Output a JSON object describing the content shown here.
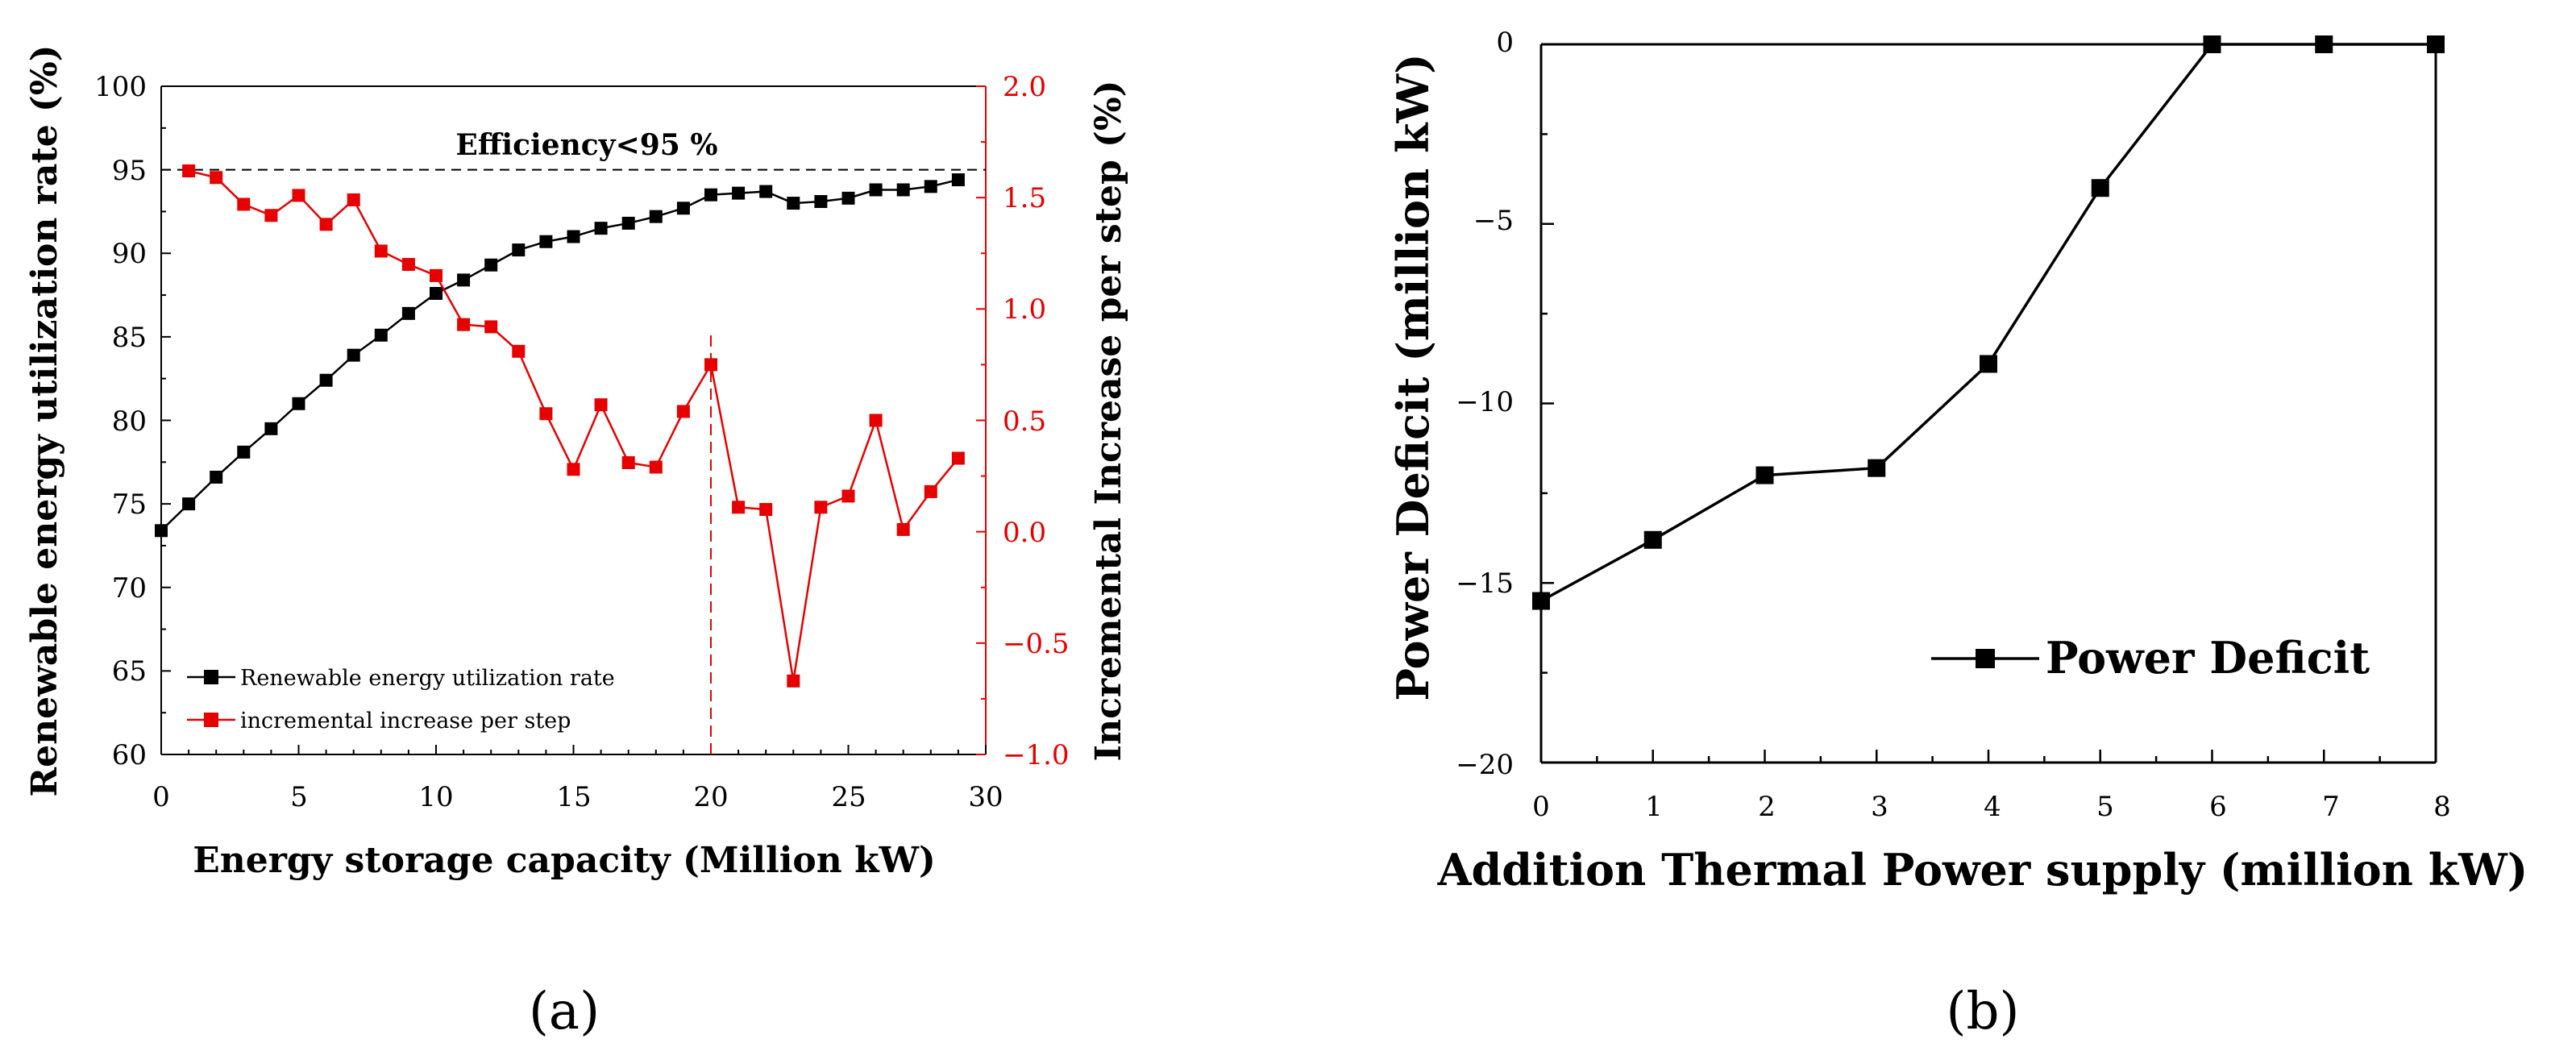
{
  "chart_data": [
    {
      "panel": "(a)",
      "type": "line",
      "xlabel": "Energy storage capacity (Million kW)",
      "ylabel": "Renewable energy utilization rate (%)",
      "y2label": "Incremental Increase per step (%)",
      "xlim": [
        0,
        30
      ],
      "ylim": [
        60,
        100
      ],
      "y2lim": [
        -1.0,
        2.0
      ],
      "xticks": [
        "0",
        "5",
        "10",
        "15",
        "20",
        "25",
        "30"
      ],
      "yticks": [
        "60",
        "65",
        "70",
        "75",
        "80",
        "85",
        "90",
        "95",
        "100"
      ],
      "y2ticks": [
        "−1.0",
        "−0.5",
        "0.0",
        "0.5",
        "1.0",
        "1.5",
        "2.0"
      ],
      "reference_line": {
        "axis": "y",
        "value": 95,
        "label": "Efficiency<95 %"
      },
      "marker_line": {
        "axis": "x",
        "value": 20,
        "y2_to": 0.9
      },
      "series": [
        {
          "name": "Renewable energy utilization rate",
          "axis": "left",
          "color": "#000000",
          "x": [
            0,
            1,
            2,
            3,
            4,
            5,
            6,
            7,
            8,
            9,
            10,
            11,
            12,
            13,
            14,
            15,
            16,
            17,
            18,
            19,
            20,
            21,
            22,
            23,
            24,
            25,
            26,
            27,
            28,
            29
          ],
          "values": [
            73.4,
            75.0,
            76.6,
            78.1,
            79.5,
            81.0,
            82.4,
            83.9,
            85.1,
            86.4,
            87.6,
            88.4,
            89.3,
            90.2,
            90.7,
            91.0,
            91.5,
            91.8,
            92.2,
            92.7,
            93.5,
            93.6,
            93.7,
            93.0,
            93.1,
            93.3,
            93.8,
            93.8,
            94.0,
            94.4
          ]
        },
        {
          "name": "incremental increase per step",
          "axis": "right",
          "color": "#e60000",
          "x": [
            1,
            2,
            3,
            4,
            5,
            6,
            7,
            8,
            9,
            10,
            11,
            12,
            13,
            14,
            15,
            16,
            17,
            18,
            19,
            20,
            21,
            22,
            23,
            24,
            25,
            26,
            27,
            28,
            29
          ],
          "values": [
            1.62,
            1.59,
            1.47,
            1.42,
            1.51,
            1.38,
            1.49,
            1.26,
            1.2,
            1.15,
            0.93,
            0.92,
            0.81,
            0.53,
            0.28,
            0.57,
            0.31,
            0.29,
            0.54,
            0.75,
            0.11,
            0.1,
            -0.67,
            0.11,
            0.16,
            0.5,
            0.01,
            0.18,
            0.33
          ]
        }
      ],
      "legend": [
        "Renewable energy utilization rate",
        "incremental increase per step"
      ]
    },
    {
      "panel": "(b)",
      "type": "line",
      "xlabel": "Addition Thermal Power supply (million kW)",
      "ylabel": "Power Deficit (million kW)",
      "xlim": [
        0,
        8
      ],
      "ylim": [
        -20,
        0
      ],
      "xticks": [
        "0",
        "1",
        "2",
        "3",
        "4",
        "5",
        "6",
        "7",
        "8"
      ],
      "yticks": [
        "−20",
        "−15",
        "−10",
        "−5",
        "0"
      ],
      "series": [
        {
          "name": "Power Deficit",
          "color": "#000000",
          "x": [
            0,
            1,
            2,
            3,
            4,
            5,
            6,
            7,
            8
          ],
          "values": [
            -15.5,
            -13.8,
            -12.0,
            -11.8,
            -8.9,
            -4.0,
            0.0,
            0.0,
            0.0
          ]
        }
      ],
      "legend": [
        "Power Deficit"
      ]
    }
  ]
}
